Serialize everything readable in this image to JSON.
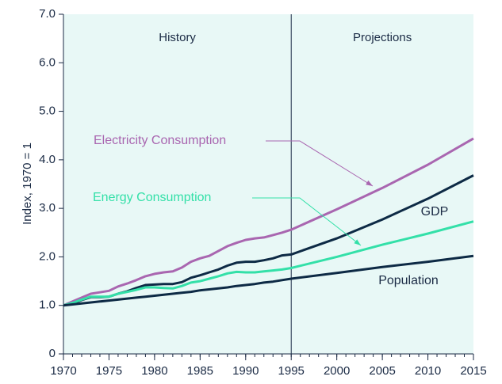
{
  "chart_data": {
    "type": "line",
    "ylabel": "Index, 1970 = 1",
    "annotations": [
      "History",
      "Projections"
    ],
    "divider_x": 1995,
    "x": [
      1970,
      1971,
      1972,
      1973,
      1974,
      1975,
      1976,
      1977,
      1978,
      1979,
      1980,
      1981,
      1982,
      1983,
      1984,
      1985,
      1986,
      1987,
      1988,
      1989,
      1990,
      1991,
      1992,
      1993,
      1994,
      1995,
      2000,
      2005,
      2010,
      2015
    ],
    "series": [
      {
        "name": "Electricity Consumption",
        "color": "#a966b0",
        "values": [
          1.0,
          1.08,
          1.16,
          1.24,
          1.27,
          1.3,
          1.39,
          1.45,
          1.52,
          1.6,
          1.65,
          1.68,
          1.7,
          1.78,
          1.9,
          1.97,
          2.02,
          2.12,
          2.22,
          2.29,
          2.35,
          2.38,
          2.4,
          2.45,
          2.5,
          2.56,
          2.98,
          3.42,
          3.9,
          4.44
        ]
      },
      {
        "name": "GDP",
        "color": "#0d2a45",
        "values": [
          1.0,
          1.04,
          1.11,
          1.17,
          1.17,
          1.18,
          1.24,
          1.29,
          1.36,
          1.42,
          1.43,
          1.44,
          1.44,
          1.48,
          1.57,
          1.62,
          1.68,
          1.74,
          1.82,
          1.88,
          1.9,
          1.9,
          1.93,
          1.97,
          2.03,
          2.05,
          2.38,
          2.77,
          3.2,
          3.68
        ]
      },
      {
        "name": "Energy Consumption",
        "color": "#33e0a8",
        "values": [
          1.0,
          1.05,
          1.12,
          1.18,
          1.18,
          1.18,
          1.24,
          1.28,
          1.32,
          1.37,
          1.37,
          1.36,
          1.35,
          1.4,
          1.47,
          1.5,
          1.55,
          1.6,
          1.66,
          1.69,
          1.68,
          1.68,
          1.7,
          1.72,
          1.74,
          1.77,
          2.0,
          2.25,
          2.48,
          2.73
        ]
      },
      {
        "name": "Population",
        "color": "#0d2a45",
        "values": [
          1.0,
          1.02,
          1.04,
          1.06,
          1.08,
          1.1,
          1.12,
          1.14,
          1.16,
          1.18,
          1.2,
          1.22,
          1.24,
          1.26,
          1.28,
          1.31,
          1.33,
          1.35,
          1.37,
          1.4,
          1.42,
          1.44,
          1.47,
          1.49,
          1.52,
          1.55,
          1.67,
          1.79,
          1.9,
          2.02
        ]
      }
    ],
    "xlim": [
      1970,
      2015
    ],
    "xticks": [
      1970,
      1975,
      1980,
      1985,
      1990,
      1995,
      2000,
      2005,
      2010,
      2015
    ],
    "xticks_minor": [
      1970,
      1971,
      1972,
      1973,
      1974,
      1975,
      1976,
      1977,
      1978,
      1979,
      1980,
      1981,
      1982,
      1983,
      1984,
      1985,
      1986,
      1987,
      1988,
      1989,
      1990,
      1991,
      1992,
      1993,
      1994,
      1995,
      1996,
      1997,
      1998,
      1999,
      2000,
      2001,
      2002,
      2003,
      2004,
      2005,
      2006,
      2007,
      2008,
      2009,
      2010,
      2011,
      2012,
      2013,
      2014,
      2015
    ],
    "ylim": [
      0,
      7
    ],
    "yticks": [
      0,
      {
        "value": 1,
        "label": "1.0"
      },
      {
        "value": 2,
        "label": "2.0"
      },
      {
        "value": 3,
        "label": "3.0"
      },
      {
        "value": 4,
        "label": "4.0"
      },
      {
        "value": 5,
        "label": "5.0"
      },
      {
        "value": 6,
        "label": "6.0"
      },
      {
        "value": 7,
        "label": "7.0"
      }
    ],
    "background": "#e8f8f6"
  }
}
